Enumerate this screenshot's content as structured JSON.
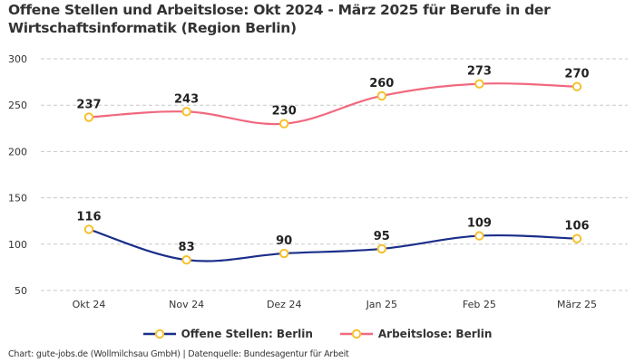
{
  "title": "Offene Stellen und Arbeitslose: Okt 2024 - März 2025 für Berufe in der Wirtschaftsinformatik (Region Berlin)",
  "footer": "Chart: gute-jobs.de (Wollmilchsau GmbH) | Datenquelle: Bundesagentur für Arbeit",
  "chart_data": {
    "type": "line",
    "title": "Offene Stellen und Arbeitslose: Okt 2024 - März 2025 für Berufe in der Wirtschaftsinformatik (Region Berlin)",
    "xlabel": "",
    "ylabel": "",
    "categories": [
      "Okt 24",
      "Nov 24",
      "Dez 24",
      "Jan 25",
      "Feb 25",
      "März 25"
    ],
    "ylim": [
      50,
      300
    ],
    "yticks": [
      50,
      100,
      150,
      200,
      250,
      300
    ],
    "grid": true,
    "legend_position": "bottom",
    "marker_color": "#f5c12e",
    "series": [
      {
        "name": "Offene Stellen: Berlin",
        "color": "#1a2e8a",
        "values": [
          116,
          83,
          90,
          95,
          109,
          106
        ]
      },
      {
        "name": "Arbeitslose: Berlin",
        "color": "#f0697f",
        "values": [
          237,
          243,
          230,
          260,
          273,
          270
        ]
      }
    ]
  }
}
